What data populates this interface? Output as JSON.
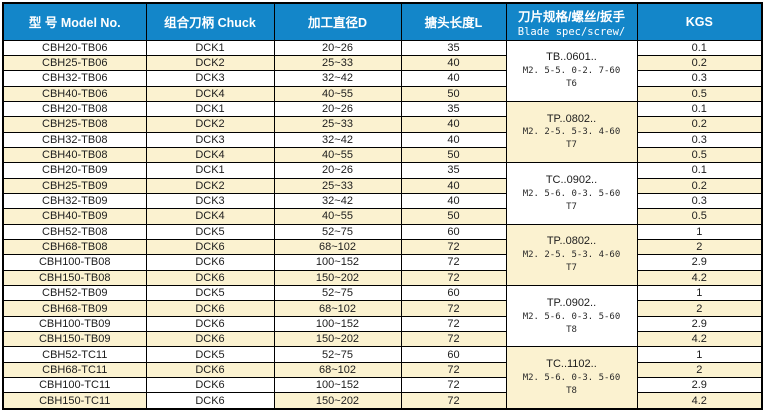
{
  "table": {
    "columns": [
      {
        "key": "model",
        "label": "型 号 Model No."
      },
      {
        "key": "chuck",
        "label": "组合刀柄 Chuck"
      },
      {
        "key": "d",
        "label": "加工直径D"
      },
      {
        "key": "l",
        "label": "搪头长度L"
      },
      {
        "key": "blade",
        "label": "刀片规格/螺丝/扳手",
        "sublabel": "Blade spec/screw/"
      },
      {
        "key": "kgs",
        "label": "KGS"
      }
    ],
    "groups": [
      {
        "blade": {
          "line1": "TB..0601..",
          "line2": "M2. 5-5. 0-2. 7-60",
          "line3": "T6"
        },
        "rows": [
          {
            "model": "CBH20-TB06",
            "chuck": "DCK1",
            "d": "20~26",
            "l": "35",
            "kgs": "0.1"
          },
          {
            "model": "CBH25-TB06",
            "chuck": "DCK2",
            "d": "25~33",
            "l": "40",
            "kgs": "0.2"
          },
          {
            "model": "CBH32-TB06",
            "chuck": "DCK3",
            "d": "32~42",
            "l": "40",
            "kgs": "0.3"
          },
          {
            "model": "CBH40-TB06",
            "chuck": "DCK4",
            "d": "40~55",
            "l": "50",
            "kgs": "0.5"
          }
        ]
      },
      {
        "blade": {
          "line1": "TP..0802..",
          "line2": "M2. 2-5. 5-3. 4-60",
          "line3": "T7"
        },
        "rows": [
          {
            "model": "CBH20-TB08",
            "chuck": "DCK1",
            "d": "20~26",
            "l": "35",
            "kgs": "0.1"
          },
          {
            "model": "CBH25-TB08",
            "chuck": "DCK2",
            "d": "25~33",
            "l": "40",
            "kgs": "0.2"
          },
          {
            "model": "CBH32-TB08",
            "chuck": "DCK3",
            "d": "32~42",
            "l": "40",
            "kgs": "0.3"
          },
          {
            "model": "CBH40-TB08",
            "chuck": "DCK4",
            "d": "40~55",
            "l": "50",
            "kgs": "0.5"
          }
        ]
      },
      {
        "blade": {
          "line1": "TC..0902..",
          "line2": "M2. 5-6. 0-3. 5-60",
          "line3": "T7"
        },
        "rows": [
          {
            "model": "CBH20-TB09",
            "chuck": "DCK1",
            "d": "20~26",
            "l": "35",
            "kgs": "0.1"
          },
          {
            "model": "CBH25-TB09",
            "chuck": "DCK2",
            "d": "25~33",
            "l": "40",
            "kgs": "0.2"
          },
          {
            "model": "CBH32-TB09",
            "chuck": "DCK3",
            "d": "32~42",
            "l": "40",
            "kgs": "0.3"
          },
          {
            "model": "CBH40-TB09",
            "chuck": "DCK4",
            "d": "40~55",
            "l": "50",
            "kgs": "0.5"
          }
        ]
      },
      {
        "blade": {
          "line1": "TP..0802..",
          "line2": "M2. 2-5. 5-3. 4-60",
          "line3": "T7"
        },
        "rows": [
          {
            "model": "CBH52-TB08",
            "chuck": "DCK5",
            "d": "52~75",
            "l": "60",
            "kgs": "1"
          },
          {
            "model": "CBH68-TB08",
            "chuck": "DCK6",
            "d": "68~102",
            "l": "72",
            "kgs": "2"
          },
          {
            "model": "CBH100-TB08",
            "chuck": "DCK6",
            "d": "100~152",
            "l": "72",
            "kgs": "2.9"
          },
          {
            "model": "CBH150-TB08",
            "chuck": "DCK6",
            "d": "150~202",
            "l": "72",
            "kgs": "4.2"
          }
        ]
      },
      {
        "blade": {
          "line1": "TP..0902..",
          "line2": "M2. 5-6. 0-3. 5-60",
          "line3": "T8"
        },
        "rows": [
          {
            "model": "CBH52-TB09",
            "chuck": "DCK5",
            "d": "52~75",
            "l": "60",
            "kgs": "1"
          },
          {
            "model": "CBH68-TB09",
            "chuck": "DCK6",
            "d": "68~102",
            "l": "72",
            "kgs": "2"
          },
          {
            "model": "CBH100-TB09",
            "chuck": "DCK6",
            "d": "100~152",
            "l": "72",
            "kgs": "2.9"
          },
          {
            "model": "CBH150-TB09",
            "chuck": "DCK6",
            "d": "150~202",
            "l": "72",
            "kgs": "4.2"
          }
        ]
      },
      {
        "blade": {
          "line1": "TC..1102..",
          "line2": "M2. 5-6. 0-3. 5-60",
          "line3": "T8"
        },
        "rows": [
          {
            "model": "CBH52-TC11",
            "chuck": "DCK5",
            "d": "52~75",
            "l": "60",
            "kgs": "1"
          },
          {
            "model": "CBH68-TC11",
            "chuck": "DCK6",
            "d": "68~102",
            "l": "72",
            "kgs": "2"
          },
          {
            "model": "CBH100-TC11",
            "chuck": "DCK6",
            "d": "100~152",
            "l": "72",
            "kgs": "2.9"
          },
          {
            "model": "CBH150-TC11",
            "chuck": "DCK6",
            "d": "150~202",
            "l": "72",
            "kgs": "4.2",
            "cell_bg_overrides": {
              "chuck": "#FFFFFF"
            }
          }
        ]
      }
    ],
    "colors": {
      "header_bg": "#1386C9",
      "header_text": "#FFFFFF",
      "row_bg": "#FFFFFF",
      "row_alt_bg": "#FBF2D0",
      "border": "#000000",
      "text": "#1C1C1C"
    }
  }
}
